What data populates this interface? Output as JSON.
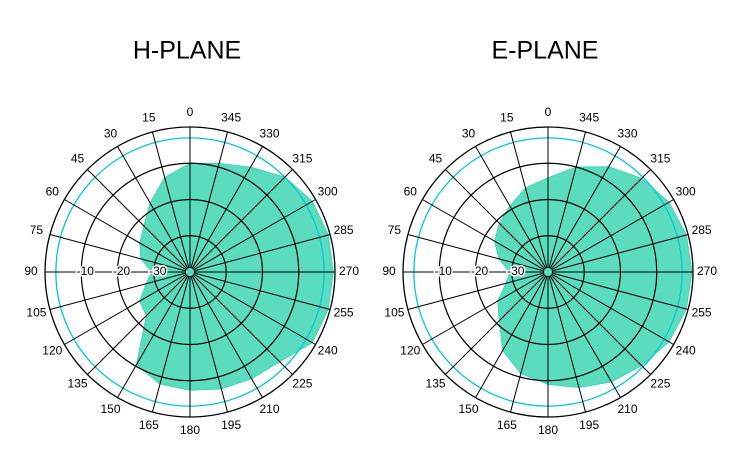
{
  "chart_data": [
    {
      "type": "polar",
      "title": "H-PLANE",
      "theta": [
        0,
        15,
        30,
        45,
        60,
        75,
        90,
        105,
        120,
        135,
        150,
        165,
        180,
        195,
        210,
        225,
        240,
        255,
        270,
        285,
        300,
        315,
        330,
        345
      ],
      "values": [
        -10,
        -13,
        -18,
        -22,
        -24,
        -26,
        -29.5,
        -27.5,
        -24,
        -23,
        -10.4,
        -8,
        -7.4,
        -6.6,
        -6,
        -5,
        -1,
        -0.5,
        -0.5,
        -0.5,
        -1,
        -3,
        -6.6,
        -9
      ],
      "color": "#3fd6b4",
      "rlim": [
        -40,
        0
      ],
      "rticks": [
        -10,
        -20,
        -30
      ],
      "reference_ring": -3,
      "reference_color": "#00c8d8"
    },
    {
      "type": "polar",
      "title": "E-PLANE",
      "theta": [
        0,
        15,
        30,
        45,
        60,
        75,
        90,
        105,
        120,
        135,
        150,
        165,
        180,
        195,
        210,
        225,
        240,
        255,
        270,
        285,
        300,
        315,
        330,
        345
      ],
      "values": [
        -14,
        -16,
        -19,
        -21,
        -23,
        -26,
        -29.5,
        -28,
        -24,
        -21,
        -15,
        -11,
        -9,
        -7,
        -5,
        -3.5,
        -1.5,
        -0.5,
        -0.3,
        -0.5,
        -1.5,
        -3.5,
        -6.5,
        -10
      ],
      "color": "#3fd6b4",
      "rlim": [
        -40,
        0
      ],
      "rticks": [
        -10,
        -20,
        -30
      ],
      "reference_ring": -3,
      "reference_color": "#00c8d8"
    }
  ]
}
